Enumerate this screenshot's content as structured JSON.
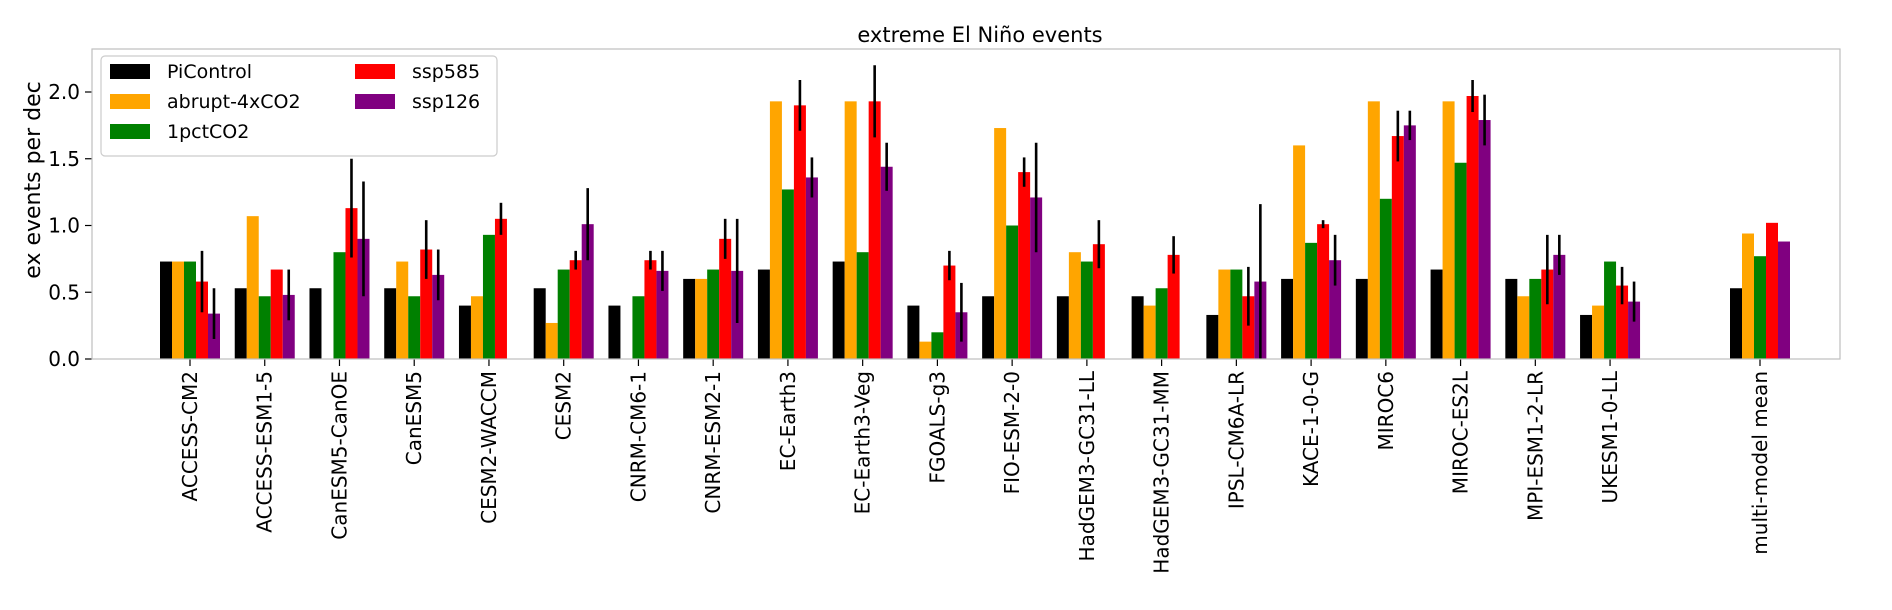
{
  "chart_data": {
    "type": "bar",
    "title": "extreme El Niño events",
    "xlabel": "",
    "ylabel": "ex events per dec",
    "ylim": [
      0,
      2.35
    ],
    "yticks": [
      "0.0",
      "0.5",
      "1.0",
      "1.5",
      "2.0"
    ],
    "grid": false,
    "legend_placement": "top-left",
    "categories": [
      "ACCESS-CM2",
      "ACCESS-ESM1-5",
      "CanESM5-CanOE",
      "CanESM5",
      "CESM2-WACCM",
      "CESM2",
      "CNRM-CM6-1",
      "CNRM-ESM2-1",
      "EC-Earth3",
      "EC-Earth3-Veg",
      "FGOALS-g3",
      "FIO-ESM-2-0",
      "HadGEM3-GC31-LL",
      "HadGEM3-GC31-MM",
      "IPSL-CM6A-LR",
      "KACE-1-0-G",
      "MIROC6",
      "MIROC-ES2L",
      "MPI-ESM1-2-LR",
      "UKESM1-0-LL",
      "multi-model mean"
    ],
    "series": [
      {
        "name": "PiControl",
        "color": "#000000",
        "values": [
          0.73,
          0.53,
          0.53,
          0.53,
          0.4,
          0.53,
          0.4,
          0.6,
          0.67,
          0.73,
          0.4,
          0.47,
          0.47,
          0.47,
          0.33,
          0.6,
          0.6,
          0.67,
          0.6,
          0.33,
          0.53
        ],
        "errors": [
          null,
          null,
          null,
          null,
          null,
          null,
          null,
          null,
          null,
          null,
          null,
          null,
          null,
          null,
          null,
          null,
          null,
          null,
          null,
          null,
          null
        ]
      },
      {
        "name": "abrupt-4xCO2",
        "color": "#ffa500",
        "values": [
          0.73,
          1.07,
          null,
          0.73,
          0.47,
          0.27,
          null,
          0.6,
          1.93,
          1.93,
          0.13,
          1.73,
          0.8,
          0.4,
          0.67,
          1.6,
          1.93,
          1.93,
          0.47,
          0.4,
          0.94
        ],
        "errors": [
          null,
          null,
          null,
          null,
          null,
          null,
          null,
          null,
          null,
          null,
          null,
          null,
          null,
          null,
          null,
          null,
          null,
          null,
          null,
          null,
          null
        ]
      },
      {
        "name": "1pctCO2",
        "color": "#008000",
        "values": [
          0.73,
          0.47,
          0.8,
          0.47,
          0.93,
          0.67,
          0.47,
          0.67,
          1.27,
          0.8,
          0.2,
          1.0,
          0.73,
          0.53,
          0.67,
          0.87,
          1.2,
          1.47,
          0.6,
          0.73,
          0.77
        ],
        "errors": [
          null,
          null,
          null,
          null,
          null,
          null,
          null,
          null,
          null,
          null,
          null,
          null,
          null,
          null,
          null,
          null,
          null,
          null,
          null,
          null,
          null
        ]
      },
      {
        "name": "ssp585",
        "color": "#ff0000",
        "values": [
          0.58,
          0.67,
          1.13,
          0.82,
          1.05,
          0.74,
          0.74,
          0.9,
          1.9,
          1.93,
          0.7,
          1.4,
          0.86,
          0.78,
          0.47,
          1.01,
          1.67,
          1.97,
          0.67,
          0.55,
          1.02
        ],
        "errors": [
          0.23,
          null,
          0.37,
          0.22,
          0.12,
          0.07,
          0.07,
          0.15,
          0.19,
          0.27,
          0.11,
          0.11,
          0.18,
          0.14,
          0.22,
          0.03,
          0.19,
          0.12,
          0.26,
          0.14,
          null
        ]
      },
      {
        "name": "ssp126",
        "color": "#800080",
        "values": [
          0.34,
          0.48,
          0.9,
          0.63,
          null,
          1.01,
          0.66,
          0.66,
          1.36,
          1.44,
          0.35,
          1.21,
          null,
          null,
          0.58,
          0.74,
          1.75,
          1.79,
          0.78,
          0.43,
          0.88
        ],
        "errors": [
          0.19,
          0.19,
          0.43,
          0.19,
          null,
          0.27,
          0.15,
          0.39,
          0.15,
          0.18,
          0.22,
          0.41,
          null,
          null,
          0.58,
          0.19,
          0.11,
          0.19,
          0.15,
          0.15,
          null
        ]
      }
    ]
  }
}
